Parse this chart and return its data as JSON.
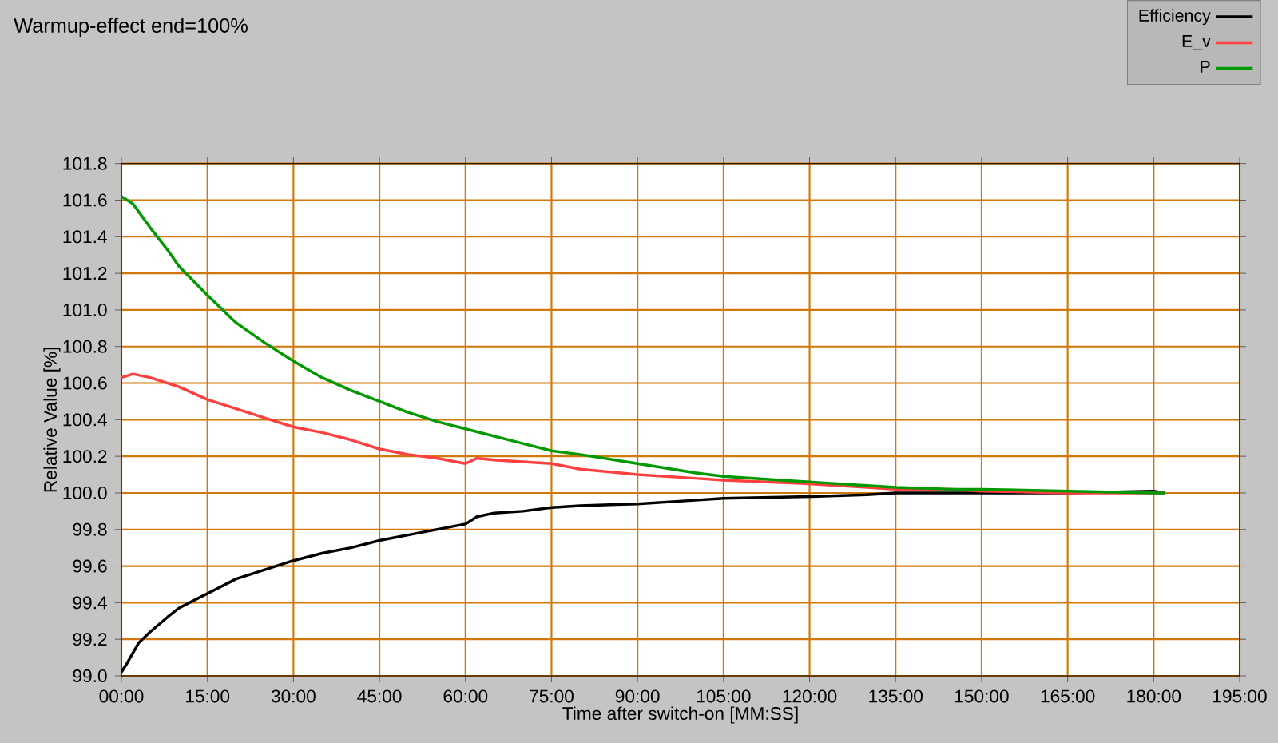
{
  "chart_data": {
    "type": "line",
    "title": "Warmup-effect end=100%",
    "xlabel": "Time after switch-on [MM:SS]",
    "ylabel": "Relative Value [%]",
    "xlim": [
      0,
      195
    ],
    "ylim": [
      99.0,
      101.8
    ],
    "xticks": [
      {
        "value": 0,
        "label": "00:00"
      },
      {
        "value": 15,
        "label": "15:00"
      },
      {
        "value": 30,
        "label": "30:00"
      },
      {
        "value": 45,
        "label": "45:00"
      },
      {
        "value": 60,
        "label": "60:00"
      },
      {
        "value": 75,
        "label": "75:00"
      },
      {
        "value": 90,
        "label": "90:00"
      },
      {
        "value": 105,
        "label": "105:00"
      },
      {
        "value": 120,
        "label": "120:00"
      },
      {
        "value": 135,
        "label": "135:00"
      },
      {
        "value": 150,
        "label": "150:00"
      },
      {
        "value": 165,
        "label": "165:00"
      },
      {
        "value": 180,
        "label": "180:00"
      },
      {
        "value": 195,
        "label": "195:00"
      }
    ],
    "yticks": [
      {
        "value": 99.0,
        "label": "99.0"
      },
      99.2,
      99.4,
      99.6,
      99.8,
      {
        "value": 100.0,
        "label": "100.0"
      },
      100.2,
      100.4,
      100.6,
      100.8,
      {
        "value": 101.0,
        "label": "101.0"
      },
      101.2,
      101.4,
      101.6,
      101.8
    ],
    "grid": true,
    "legend": "top right",
    "series": [
      {
        "name": "Efficiency",
        "color": "#000000",
        "x": [
          0,
          1,
          3,
          5,
          8,
          10,
          15,
          20,
          25,
          30,
          35,
          40,
          45,
          50,
          55,
          60,
          62,
          65,
          70,
          75,
          80,
          90,
          100,
          105,
          120,
          130,
          135,
          150,
          165,
          180,
          182
        ],
        "values": [
          99.02,
          99.07,
          99.18,
          99.24,
          99.32,
          99.37,
          99.45,
          99.53,
          99.58,
          99.63,
          99.67,
          99.7,
          99.74,
          99.77,
          99.8,
          99.83,
          99.87,
          99.89,
          99.9,
          99.92,
          99.93,
          99.94,
          99.96,
          99.97,
          99.98,
          99.99,
          100.0,
          100.0,
          100.0,
          100.01,
          100.0
        ]
      },
      {
        "name": "E_v",
        "color": "#ff4040",
        "x": [
          0,
          2,
          5,
          10,
          15,
          20,
          25,
          30,
          35,
          40,
          45,
          50,
          55,
          60,
          62,
          65,
          70,
          75,
          80,
          90,
          100,
          105,
          120,
          130,
          135,
          145,
          150,
          165,
          180,
          182
        ],
        "values": [
          100.63,
          100.65,
          100.63,
          100.58,
          100.51,
          100.46,
          100.41,
          100.36,
          100.33,
          100.29,
          100.24,
          100.21,
          100.19,
          100.16,
          100.19,
          100.18,
          100.17,
          100.16,
          100.13,
          100.1,
          100.08,
          100.07,
          100.05,
          100.03,
          100.02,
          100.02,
          100.01,
          100.0,
          100.0,
          100.0
        ]
      },
      {
        "name": "P",
        "color": "#009900",
        "x": [
          0,
          2,
          5,
          8,
          10,
          15,
          20,
          25,
          30,
          35,
          40,
          45,
          50,
          55,
          60,
          70,
          75,
          80,
          90,
          100,
          105,
          115,
          120,
          130,
          135,
          145,
          150,
          165,
          180,
          182
        ],
        "values": [
          101.62,
          101.58,
          101.45,
          101.33,
          101.24,
          101.08,
          100.93,
          100.82,
          100.72,
          100.63,
          100.56,
          100.5,
          100.44,
          100.39,
          100.35,
          100.27,
          100.23,
          100.21,
          100.16,
          100.11,
          100.09,
          100.07,
          100.06,
          100.04,
          100.03,
          100.02,
          100.02,
          100.01,
          100.0,
          100.0
        ]
      }
    ]
  }
}
